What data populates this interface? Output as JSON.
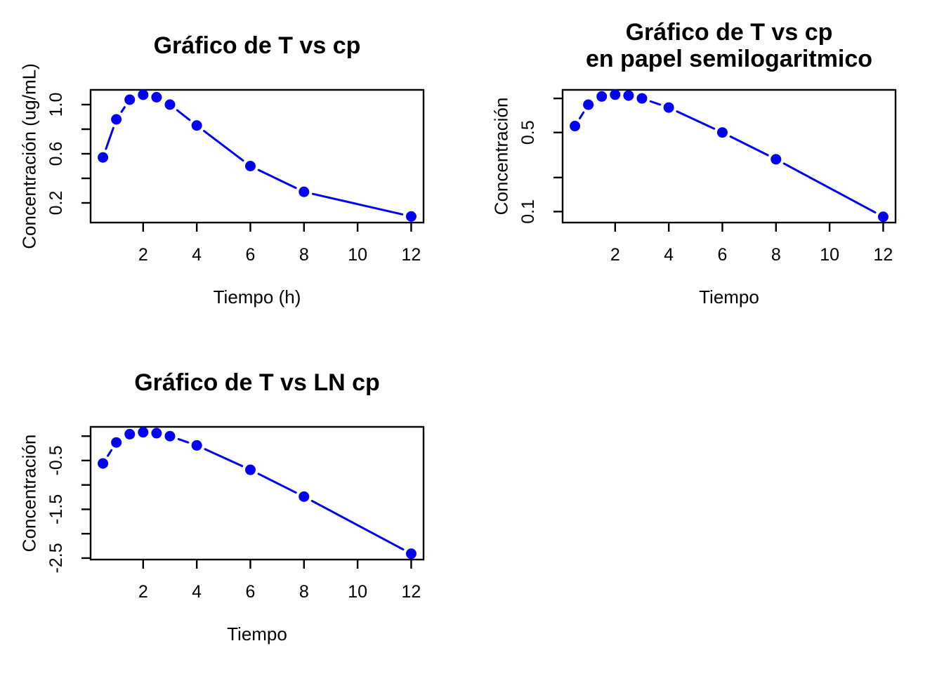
{
  "figure": {
    "background": "#ffffff",
    "layout": "2x2 grid, bottom-right cell empty"
  },
  "style": {
    "series_color": "#0202f2",
    "axis_color": "#000000",
    "text_color": "#000000",
    "marker": "filled-circle",
    "marker_radius": 7.5,
    "line_width": 3,
    "point_gap": 13
  },
  "chart_data": [
    {
      "type": "line",
      "title_lines": [
        "Gráfico de T vs cp"
      ],
      "xlabel": "Tiempo (h)",
      "ylabel": "Concentración (ug/mL)",
      "yscale": "linear",
      "x": [
        0.5,
        1,
        1.5,
        2,
        2.5,
        3,
        4,
        6,
        8,
        12
      ],
      "y": [
        0.57,
        0.88,
        1.04,
        1.08,
        1.06,
        1.0,
        0.83,
        0.5,
        0.29,
        0.09
      ],
      "xlim": [
        0.04,
        12.46
      ],
      "ylim": [
        0.04,
        1.12
      ],
      "xticks": [
        {
          "v": 2,
          "label": "2"
        },
        {
          "v": 4,
          "label": "4"
        },
        {
          "v": 6,
          "label": "6"
        },
        {
          "v": 8,
          "label": "8"
        },
        {
          "v": 10,
          "label": "10"
        },
        {
          "v": 12,
          "label": "12"
        }
      ],
      "yticks": [
        {
          "v": 0.2,
          "label": "0.2"
        },
        {
          "v": 0.4,
          "label": ""
        },
        {
          "v": 0.6,
          "label": "0.6"
        },
        {
          "v": 0.8,
          "label": ""
        },
        {
          "v": 1.0,
          "label": "1.0"
        }
      ]
    },
    {
      "type": "line",
      "title_lines": [
        "Gráfico de T vs cp",
        "en papel semilogaritmico"
      ],
      "xlabel": "Tiempo",
      "ylabel": "Concentración",
      "yscale": "log",
      "x": [
        0.5,
        1,
        1.5,
        2,
        2.5,
        3,
        4,
        6,
        8,
        12
      ],
      "y": [
        0.57,
        0.88,
        1.04,
        1.08,
        1.06,
        1.0,
        0.83,
        0.5,
        0.29,
        0.09
      ],
      "xlim": [
        0.04,
        12.46
      ],
      "ylim": [
        0.08,
        1.19
      ],
      "xticks": [
        {
          "v": 2,
          "label": "2"
        },
        {
          "v": 4,
          "label": "4"
        },
        {
          "v": 6,
          "label": "6"
        },
        {
          "v": 8,
          "label": "8"
        },
        {
          "v": 10,
          "label": "10"
        },
        {
          "v": 12,
          "label": "12"
        }
      ],
      "yticks": [
        {
          "v": 0.1,
          "label": "0.1"
        },
        {
          "v": 0.2,
          "label": ""
        },
        {
          "v": 0.5,
          "label": "0.5"
        },
        {
          "v": 1.0,
          "label": ""
        }
      ]
    },
    {
      "type": "line",
      "title_lines": [
        "Gráfico de T vs LN cp"
      ],
      "xlabel": "Tiempo",
      "ylabel": "Concentración",
      "yscale": "linear",
      "x": [
        0.5,
        1,
        1.5,
        2,
        2.5,
        3,
        4,
        6,
        8,
        12
      ],
      "y": [
        -0.56,
        -0.13,
        0.04,
        0.08,
        0.06,
        0,
        -0.19,
        -0.69,
        -1.24,
        -2.41
      ],
      "xlim": [
        0.04,
        12.46
      ],
      "ylim": [
        -2.53,
        0.19
      ],
      "xticks": [
        {
          "v": 2,
          "label": "2"
        },
        {
          "v": 4,
          "label": "4"
        },
        {
          "v": 6,
          "label": "6"
        },
        {
          "v": 8,
          "label": "8"
        },
        {
          "v": 10,
          "label": "10"
        },
        {
          "v": 12,
          "label": "12"
        }
      ],
      "yticks": [
        {
          "v": -2.5,
          "label": "-2.5"
        },
        {
          "v": -2.0,
          "label": ""
        },
        {
          "v": -1.5,
          "label": "-1.5"
        },
        {
          "v": -1.0,
          "label": ""
        },
        {
          "v": -0.5,
          "label": "-0.5"
        },
        {
          "v": 0,
          "label": ""
        }
      ]
    }
  ]
}
